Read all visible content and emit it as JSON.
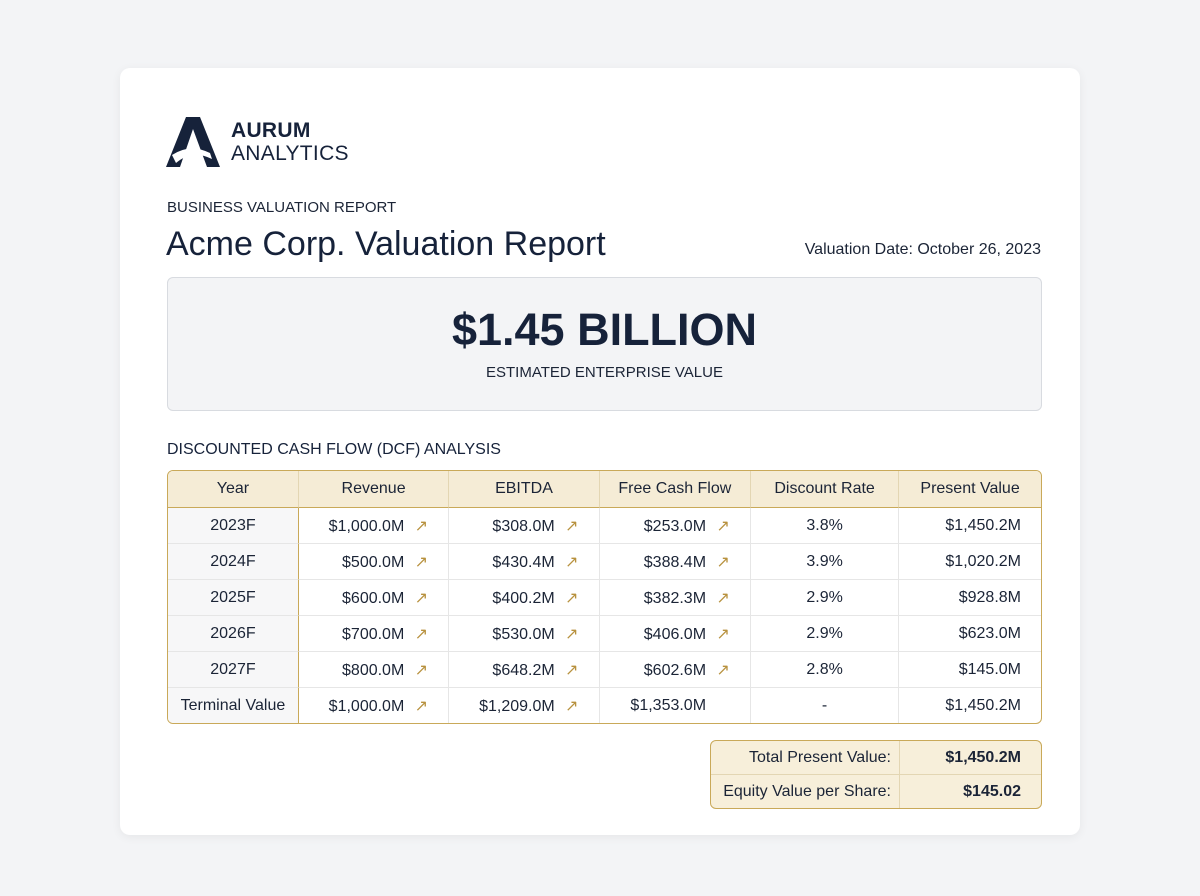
{
  "header": {
    "brand_top": "AURUM",
    "brand_bottom": "ANALYTICS",
    "kicker": "BUSINESS VALUATION REPORT",
    "title": "Acme Corp. Valuation Report",
    "date": "Valuation Date: October 26, 2023"
  },
  "highlight": {
    "value": "$1.45 BILLION",
    "label": "ESTIMATED ENTERPRISE VALUE"
  },
  "section_title": "DISCOUNTED CASH FLOW (DCF) ANALYSIS",
  "table": {
    "columns": [
      "Year",
      "Revenue",
      "EBITDA",
      "Free Cash Flow",
      "Discount Rate",
      "Present Value"
    ],
    "rows": [
      [
        "2023F",
        "$1,000.0M",
        "$308.0M",
        "$253.0M",
        "3.8%",
        "$1,450.2M"
      ],
      [
        "2024F",
        "$500.0M",
        "$430.4M",
        "$388.4M",
        "3.9%",
        "$1,020.2M"
      ],
      [
        "2025F",
        "$600.0M",
        "$400.2M",
        "$382.3M",
        "2.9%",
        "$928.8M"
      ],
      [
        "2026F",
        "$700.0M",
        "$530.0M",
        "$406.0M",
        "2.9%",
        "$623.0M"
      ],
      [
        "2027F",
        "$800.0M",
        "$648.2M",
        "$602.6M",
        "2.8%",
        "$145.0M"
      ],
      [
        "Terminal Value",
        "$1,000.0M",
        "$1,209.0M",
        "$1,353.0M",
        "-",
        "$1,450.2M"
      ]
    ]
  },
  "summary": {
    "rows": [
      [
        "Total Present Value:",
        "$1,450.2M"
      ],
      [
        "Equity Value per Share:",
        "$145.02"
      ]
    ]
  }
}
